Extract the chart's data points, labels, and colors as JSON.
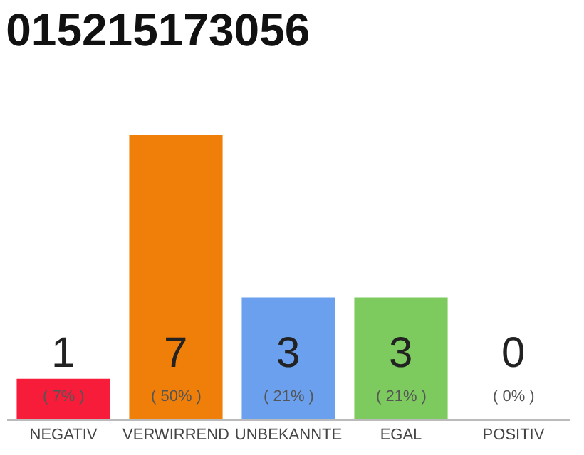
{
  "chart_data": {
    "type": "bar",
    "title": "015215173056",
    "categories": [
      "NEGATIV",
      "VERWIRREND",
      "UNBEKANNTE",
      "EGAL",
      "POSITIV"
    ],
    "values": [
      1,
      7,
      3,
      3,
      0
    ],
    "colors": [
      "#f71c3a",
      "#f07f0a",
      "#6aa0ee",
      "#7dcb5e",
      "#dddddd"
    ],
    "data_labels": true,
    "annotations": [
      {
        "text": "( 7% )",
        "x": "NEGATIV",
        "y": 0
      },
      {
        "text": "( 50% )",
        "x": "VERWIRREND",
        "y": 0
      },
      {
        "text": "( 21% )",
        "x": "UNBEKANNTE",
        "y": 0
      },
      {
        "text": "( 21% )",
        "x": "EGAL",
        "y": 0
      },
      {
        "text": "( 0% )",
        "x": "POSITIV",
        "y": 0
      }
    ],
    "xlabel": null
  }
}
